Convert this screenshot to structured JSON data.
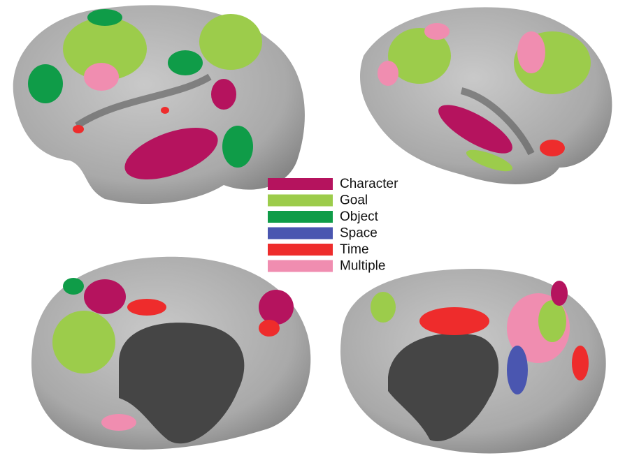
{
  "legend": {
    "items": [
      {
        "label": "Character",
        "color": "#b5135e"
      },
      {
        "label": "Goal",
        "color": "#9ccc4b"
      },
      {
        "label": "Object",
        "color": "#0f9c48"
      },
      {
        "label": "Space",
        "color": "#4a56b0"
      },
      {
        "label": "Time",
        "color": "#ee2c2c"
      },
      {
        "label": "Multiple",
        "color": "#f08db0"
      }
    ]
  }
}
